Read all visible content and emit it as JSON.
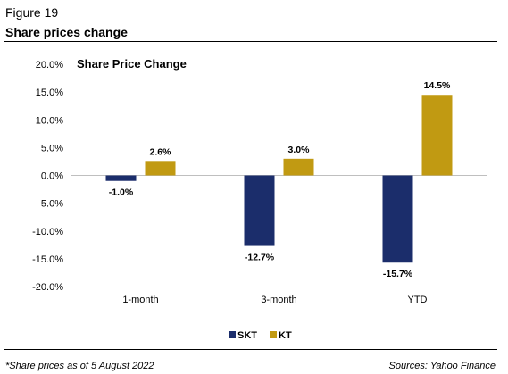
{
  "figure": {
    "label": "Figure 19",
    "title": "Share prices change"
  },
  "footer": {
    "note": "*Share prices as of 5 August 2022",
    "source": "Sources: Yahoo Finance"
  },
  "colors": {
    "SKT": "#1b2d6b",
    "KT": "#c19a12",
    "grid": "#bfbfbf"
  },
  "chart_data": {
    "type": "bar",
    "title": "Share Price Change",
    "categories": [
      "1-month",
      "3-month",
      "YTD"
    ],
    "series": [
      {
        "name": "SKT",
        "values": [
          -1.0,
          -12.7,
          -15.7
        ],
        "labels": [
          "-1.0%",
          "-12.7%",
          "-15.7%"
        ]
      },
      {
        "name": "KT",
        "values": [
          2.6,
          3.0,
          14.5
        ],
        "labels": [
          "2.6%",
          "3.0%",
          "14.5%"
        ]
      }
    ],
    "ylim": [
      -20,
      20
    ],
    "yticks": [
      20,
      15,
      10,
      5,
      0,
      -5,
      -10,
      -15,
      -20
    ],
    "ytick_labels": [
      "20.0%",
      "15.0%",
      "10.0%",
      "5.0%",
      "0.0%",
      "-5.0%",
      "-10.0%",
      "-15.0%",
      "-20.0%"
    ],
    "grid": false,
    "legend_position": "bottom"
  }
}
